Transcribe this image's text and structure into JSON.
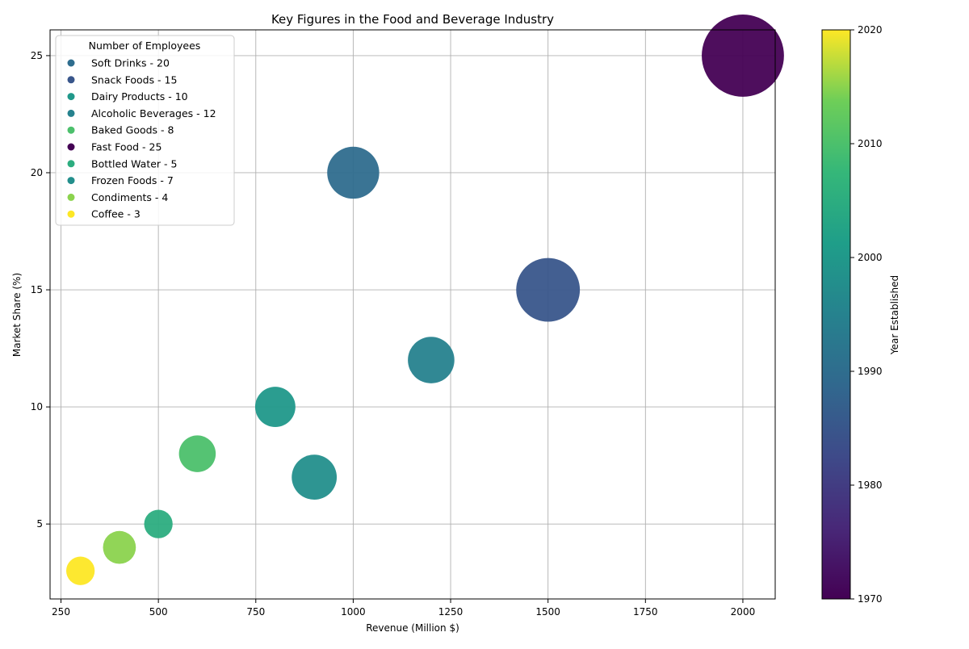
{
  "chart_data": {
    "type": "scatter",
    "title": "Key Figures in the Food and Beverage Industry",
    "xlabel": "Revenue (Million $)",
    "ylabel": "Market Share (%)",
    "xlim": [
      222,
      2083
    ],
    "ylim": [
      1.8,
      26.1
    ],
    "xticks": [
      250,
      500,
      750,
      1000,
      1250,
      1500,
      1750,
      2000
    ],
    "yticks": [
      5,
      10,
      15,
      20,
      25
    ],
    "grid": true,
    "legend": {
      "title": "Number of Employees",
      "placement": "top-left"
    },
    "colorbar": {
      "label": "Year Established",
      "range": [
        1970,
        2020
      ],
      "ticks": [
        1970,
        1980,
        1990,
        2000,
        2010,
        2020
      ]
    },
    "points": [
      {
        "label": "Soft Drinks - 20",
        "x": 1000,
        "y": 20,
        "size": 20,
        "year": 1990
      },
      {
        "label": "Snack Foods - 15",
        "x": 1500,
        "y": 15,
        "size": 30,
        "year": 1985
      },
      {
        "label": "Dairy Products - 10",
        "x": 800,
        "y": 10,
        "size": 12,
        "year": 2000
      },
      {
        "label": "Alcoholic Beverages - 12",
        "x": 1200,
        "y": 12,
        "size": 16,
        "year": 1995
      },
      {
        "label": "Baked Goods - 8",
        "x": 600,
        "y": 8,
        "size": 10,
        "year": 2010
      },
      {
        "label": "Fast Food - 25",
        "x": 2000,
        "y": 25,
        "size": 50,
        "year": 1970
      },
      {
        "label": "Bottled Water - 5",
        "x": 500,
        "y": 5,
        "size": 6,
        "year": 2005
      },
      {
        "label": "Frozen Foods - 7",
        "x": 900,
        "y": 7,
        "size": 15,
        "year": 1998
      },
      {
        "label": "Condiments - 4",
        "x": 400,
        "y": 4,
        "size": 8,
        "year": 2015
      },
      {
        "label": "Coffee - 3",
        "x": 300,
        "y": 3,
        "size": 6,
        "year": 2020
      }
    ]
  }
}
